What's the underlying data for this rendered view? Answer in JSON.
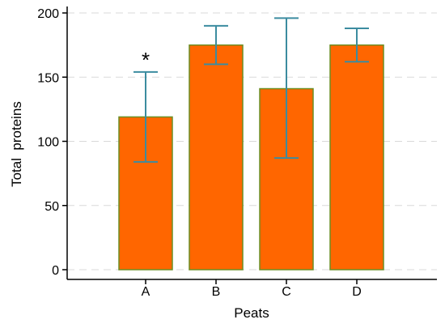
{
  "chart_data": {
    "type": "bar",
    "categories": [
      "A",
      "B",
      "C",
      "D"
    ],
    "series": [
      {
        "values": [
          119,
          175,
          141,
          175
        ],
        "error_low": [
          84,
          160,
          87,
          162
        ],
        "error_high": [
          154,
          190,
          196,
          188
        ]
      }
    ],
    "title": "",
    "xlabel": "Peats",
    "ylabel": "Total  proteins",
    "ylim": [
      0,
      200
    ],
    "yticks": [
      0,
      50,
      100,
      150,
      200
    ],
    "grid": "horizontal dashed",
    "legend": "none",
    "annotations": [
      {
        "category": "A",
        "text": "*"
      }
    ],
    "colors": {
      "bar_fill": "#ff6600",
      "bar_edge": "#6b8e23",
      "error_bar": "#3c8ca0",
      "grid": "#d9d9d9",
      "axis": "#000000"
    }
  }
}
